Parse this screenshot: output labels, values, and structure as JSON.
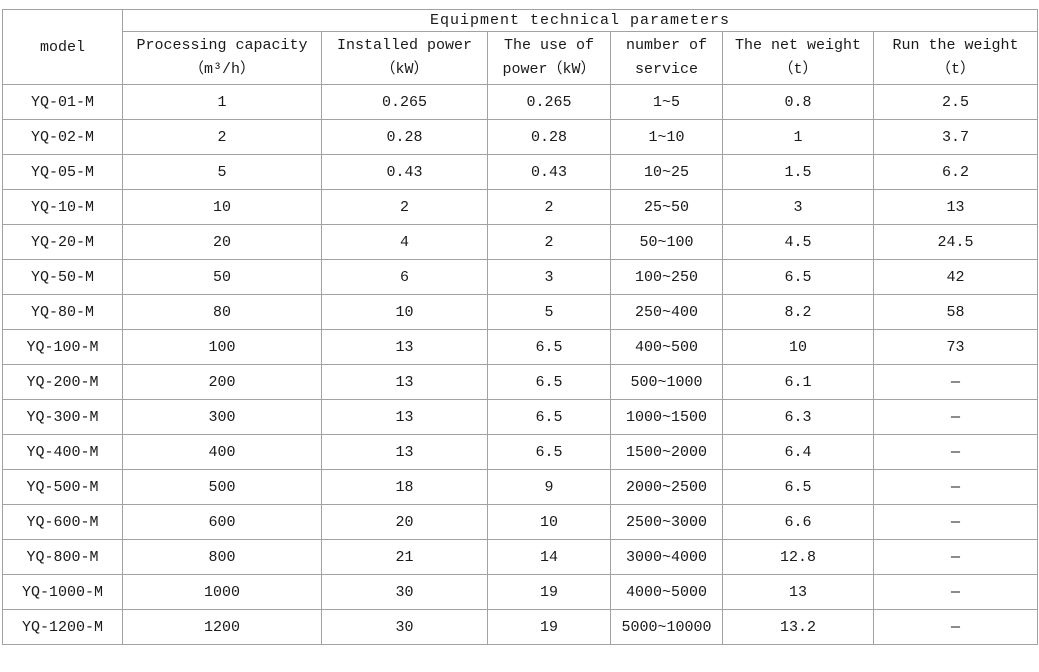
{
  "table": {
    "title": "Equipment technical parameters",
    "model_header": "model",
    "columns": [
      {
        "line1": "Processing capacity",
        "line2": "（m³/h）"
      },
      {
        "line1": "Installed power",
        "line2": "（kW）"
      },
      {
        "line1": "The use of",
        "line2": "power（kW）"
      },
      {
        "line1": "number of",
        "line2": "service"
      },
      {
        "line1": "The net weight",
        "line2": "（t）"
      },
      {
        "line1": "Run the weight",
        "line2": "（t）"
      }
    ],
    "rows": [
      [
        "YQ-01-M",
        "1",
        "0.265",
        "0.265",
        "1~5",
        "0.8",
        "2.5"
      ],
      [
        "YQ-02-M",
        "2",
        "0.28",
        "0.28",
        "1~10",
        "1",
        "3.7"
      ],
      [
        "YQ-05-M",
        "5",
        "0.43",
        "0.43",
        "10~25",
        "1.5",
        "6.2"
      ],
      [
        "YQ-10-M",
        "10",
        "2",
        "2",
        "25~50",
        "3",
        "13"
      ],
      [
        "YQ-20-M",
        "20",
        "4",
        "2",
        "50~100",
        "4.5",
        "24.5"
      ],
      [
        "YQ-50-M",
        "50",
        "6",
        "3",
        "100~250",
        "6.5",
        "42"
      ],
      [
        "YQ-80-M",
        "80",
        "10",
        "5",
        "250~400",
        "8.2",
        "58"
      ],
      [
        "YQ-100-M",
        "100",
        "13",
        "6.5",
        "400~500",
        "10",
        "73"
      ],
      [
        "YQ-200-M",
        "200",
        "13",
        "6.5",
        "500~1000",
        "6.1",
        "—"
      ],
      [
        "YQ-300-M",
        "300",
        "13",
        "6.5",
        "1000~1500",
        "6.3",
        "—"
      ],
      [
        "YQ-400-M",
        "400",
        "13",
        "6.5",
        "1500~2000",
        "6.4",
        "—"
      ],
      [
        "YQ-500-M",
        "500",
        "18",
        "9",
        "2000~2500",
        "6.5",
        "—"
      ],
      [
        "YQ-600-M",
        "600",
        "20",
        "10",
        "2500~3000",
        "6.6",
        "—"
      ],
      [
        "YQ-800-M",
        "800",
        "21",
        "14",
        "3000~4000",
        "12.8",
        "—"
      ],
      [
        "YQ-1000-M",
        "1000",
        "30",
        "19",
        "4000~5000",
        "13",
        "—"
      ],
      [
        "YQ-1200-M",
        "1200",
        "30",
        "19",
        "5000~10000",
        "13.2",
        "—"
      ]
    ]
  },
  "colors": {
    "border": "#a2a2a2",
    "text": "#1a1a1a",
    "background": "#ffffff"
  }
}
